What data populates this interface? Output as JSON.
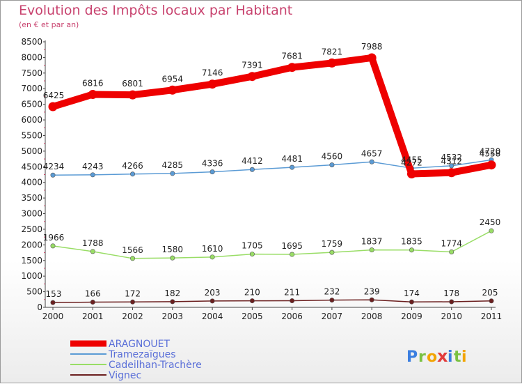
{
  "chart_data": {
    "type": "line",
    "title": "Evolution des Impôts locaux par Habitant",
    "subtitle": "(en € et par an)",
    "xlabel": "",
    "ylabel": "",
    "ylim": [
      0,
      8500
    ],
    "y_ticks": [
      "0",
      "500",
      "1000",
      "1500",
      "2000",
      "2500",
      "3000",
      "3500",
      "4000",
      "4500",
      "5000",
      "5500",
      "6000",
      "6500",
      "7000",
      "7500",
      "8000",
      "8500"
    ],
    "categories": [
      "2000",
      "2001",
      "2002",
      "2003",
      "2004",
      "2005",
      "2006",
      "2007",
      "2008",
      "2009",
      "2010",
      "2011"
    ],
    "grid": false,
    "legend_position": "bottom-left",
    "series": [
      {
        "name": "ARAGNOUET",
        "color": "#ee0000",
        "values": [
          6425,
          6816,
          6801,
          6954,
          7146,
          7391,
          7681,
          7821,
          7988,
          4272,
          4312,
          4558
        ]
      },
      {
        "name": "Tramezaïgues",
        "color": "#5b9bd5",
        "values": [
          4234,
          4243,
          4266,
          4285,
          4336,
          4412,
          4481,
          4560,
          4657,
          4455,
          4532,
          4720
        ]
      },
      {
        "name": "Cadeilhan-Trachère",
        "color": "#99dd66",
        "values": [
          1966,
          1788,
          1566,
          1580,
          1610,
          1705,
          1695,
          1759,
          1837,
          1835,
          1774,
          2450
        ]
      },
      {
        "name": "Vignec",
        "color": "#6b1f1f",
        "values": [
          153,
          166,
          172,
          182,
          203,
          210,
          211,
          232,
          239,
          174,
          178,
          205
        ]
      }
    ]
  },
  "logo": {
    "text": "Proxiti",
    "letters": [
      "P",
      "r",
      "o",
      "x",
      "i",
      "t",
      "i"
    ]
  }
}
